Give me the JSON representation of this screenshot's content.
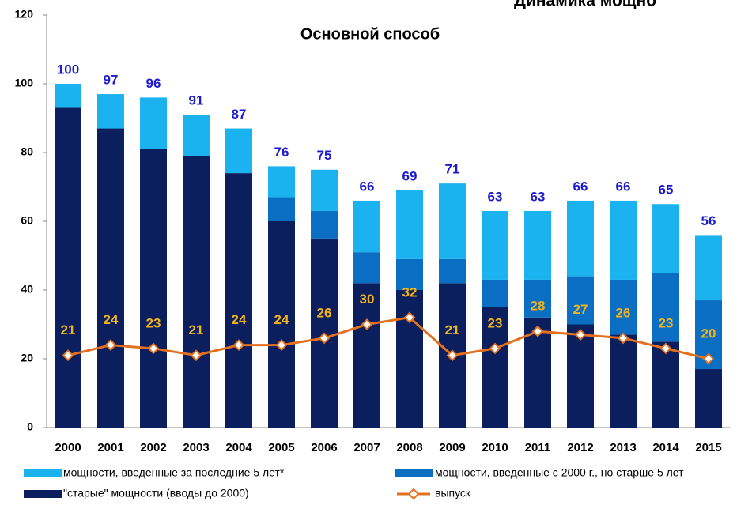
{
  "chart_data": {
    "type": "bar",
    "stacked": true,
    "title": "Основной способ",
    "header": "Динамика мощно",
    "categories": [
      "2000",
      "2001",
      "2002",
      "2003",
      "2004",
      "2005",
      "2006",
      "2007",
      "2008",
      "2009",
      "2010",
      "2011",
      "2012",
      "2013",
      "2014",
      "2015"
    ],
    "series": [
      {
        "name": "\"старые\" мощности (вводы до 2000)",
        "color": "#0b1f5e",
        "values": [
          93,
          87,
          81,
          79,
          74,
          60,
          55,
          42,
          40,
          42,
          35,
          32,
          30,
          27,
          25,
          17
        ]
      },
      {
        "name": "мощности, введенные с 2000 г., но старше 5 лет",
        "color": "#0a6fc2",
        "values": [
          0,
          0,
          0,
          0,
          0,
          7,
          8,
          9,
          9,
          7,
          8,
          11,
          14,
          16,
          20,
          20
        ]
      },
      {
        "name": "мощности, введенные за последние 5 лет*",
        "color": "#1bb3ef",
        "values": [
          7,
          10,
          15,
          12,
          13,
          9,
          12,
          15,
          20,
          22,
          20,
          20,
          22,
          23,
          20,
          19
        ]
      },
      {
        "name": "выпуск",
        "type": "line",
        "color": "#e2701f",
        "values": [
          21,
          24,
          23,
          21,
          24,
          24,
          26,
          30,
          32,
          21,
          23,
          28,
          27,
          26,
          23,
          20
        ]
      }
    ],
    "totals": [
      100,
      97,
      96,
      91,
      87,
      76,
      75,
      66,
      69,
      71,
      63,
      63,
      66,
      66,
      65,
      56
    ],
    "ylim": [
      0,
      120
    ],
    "yticks": [
      0,
      20,
      40,
      60,
      80,
      100,
      120
    ],
    "grid": false
  }
}
